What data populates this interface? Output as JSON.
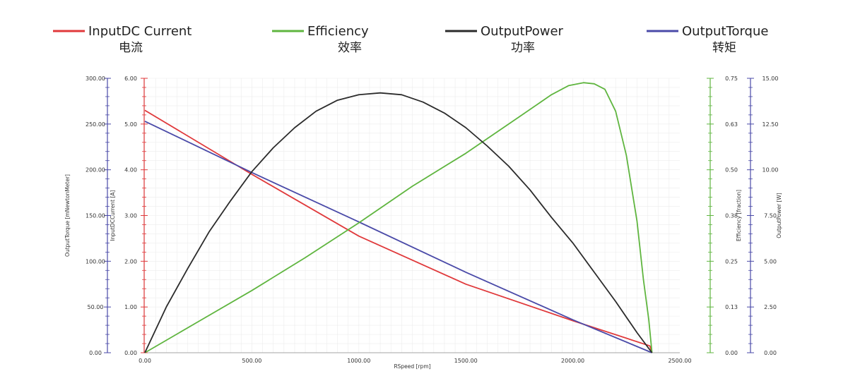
{
  "chart_data": {
    "type": "line",
    "legend": [
      {
        "key": "current",
        "label": "InputDC Current",
        "sublabel": "电流",
        "color": "#e0393b"
      },
      {
        "key": "efficiency",
        "label": "Efficiency",
        "sublabel": "效率",
        "color": "#5fb53f"
      },
      {
        "key": "power",
        "label": "OutputPower",
        "sublabel": "功率",
        "color": "#2b2b2b"
      },
      {
        "key": "torque",
        "label": "OutputTorque",
        "sublabel": "转矩",
        "color": "#4a4aa8"
      }
    ],
    "xlabel": "RSpeed [rpm]",
    "xlim": [
      0,
      2500
    ],
    "xticks": [
      "0.00",
      "500.00",
      "1000.00",
      "1500.00",
      "2000.00",
      "2500.00"
    ],
    "axes": {
      "torque": {
        "label": "OutputTorque [mNewtonMeter]",
        "range": [
          0,
          300
        ],
        "ticks": [
          "0.00",
          "50.00",
          "100.00",
          "150.00",
          "200.00",
          "250.00",
          "300.00"
        ],
        "color": "#4a4aa8"
      },
      "current": {
        "label": "InputDCCurrent [A]",
        "range": [
          0,
          6
        ],
        "ticks": [
          "0.00",
          "1.00",
          "2.00",
          "3.00",
          "4.00",
          "5.00",
          "6.00"
        ],
        "color": "#e0393b"
      },
      "efficiency": {
        "label": "Efficiency [fraction]",
        "range": [
          0,
          0.75
        ],
        "ticks": [
          "0.00",
          "0.13",
          "0.25",
          "0.38",
          "0.50",
          "0.63",
          "0.75"
        ],
        "color": "#5fb53f"
      },
      "power": {
        "label": "OutputPower [W]",
        "range": [
          0,
          15
        ],
        "ticks": [
          "0.00",
          "2.50",
          "5.00",
          "7.50",
          "10.00",
          "12.50",
          "15.00"
        ],
        "color": "#4a4aa8"
      }
    },
    "grid": true,
    "series": [
      {
        "name": "InputDC Current",
        "axis": "current",
        "color": "#e0393b",
        "x": [
          0,
          500,
          1000,
          1500,
          2000,
          2360,
          2370
        ],
        "y": [
          5.3,
          3.9,
          2.55,
          1.5,
          0.7,
          0.15,
          0.0
        ]
      },
      {
        "name": "OutputTorque",
        "axis": "torque",
        "color": "#4a4aa8",
        "x": [
          0,
          500,
          1000,
          1500,
          2000,
          2370
        ],
        "y": [
          253,
          197,
          143,
          88,
          36,
          0
        ]
      },
      {
        "name": "Efficiency",
        "axis": "efficiency",
        "color": "#5fb53f",
        "x": [
          0,
          250,
          500,
          750,
          1000,
          1250,
          1500,
          1750,
          1900,
          1980,
          2050,
          2100,
          2150,
          2200,
          2250,
          2300,
          2330,
          2355,
          2370
        ],
        "y": [
          0.0,
          0.085,
          0.17,
          0.26,
          0.355,
          0.455,
          0.545,
          0.645,
          0.705,
          0.73,
          0.738,
          0.735,
          0.72,
          0.66,
          0.54,
          0.36,
          0.2,
          0.09,
          0.0
        ]
      },
      {
        "name": "OutputPower",
        "axis": "power",
        "color": "#2b2b2b",
        "x": [
          0,
          100,
          200,
          300,
          400,
          500,
          600,
          700,
          800,
          900,
          1000,
          1100,
          1200,
          1300,
          1400,
          1500,
          1600,
          1700,
          1800,
          1900,
          2000,
          2100,
          2200,
          2300,
          2370
        ],
        "y": [
          0.0,
          2.5,
          4.6,
          6.6,
          8.3,
          9.9,
          11.2,
          12.3,
          13.2,
          13.8,
          14.1,
          14.2,
          14.1,
          13.7,
          13.1,
          12.3,
          11.3,
          10.2,
          8.9,
          7.4,
          6.0,
          4.4,
          2.8,
          1.1,
          0.0
        ]
      }
    ]
  }
}
